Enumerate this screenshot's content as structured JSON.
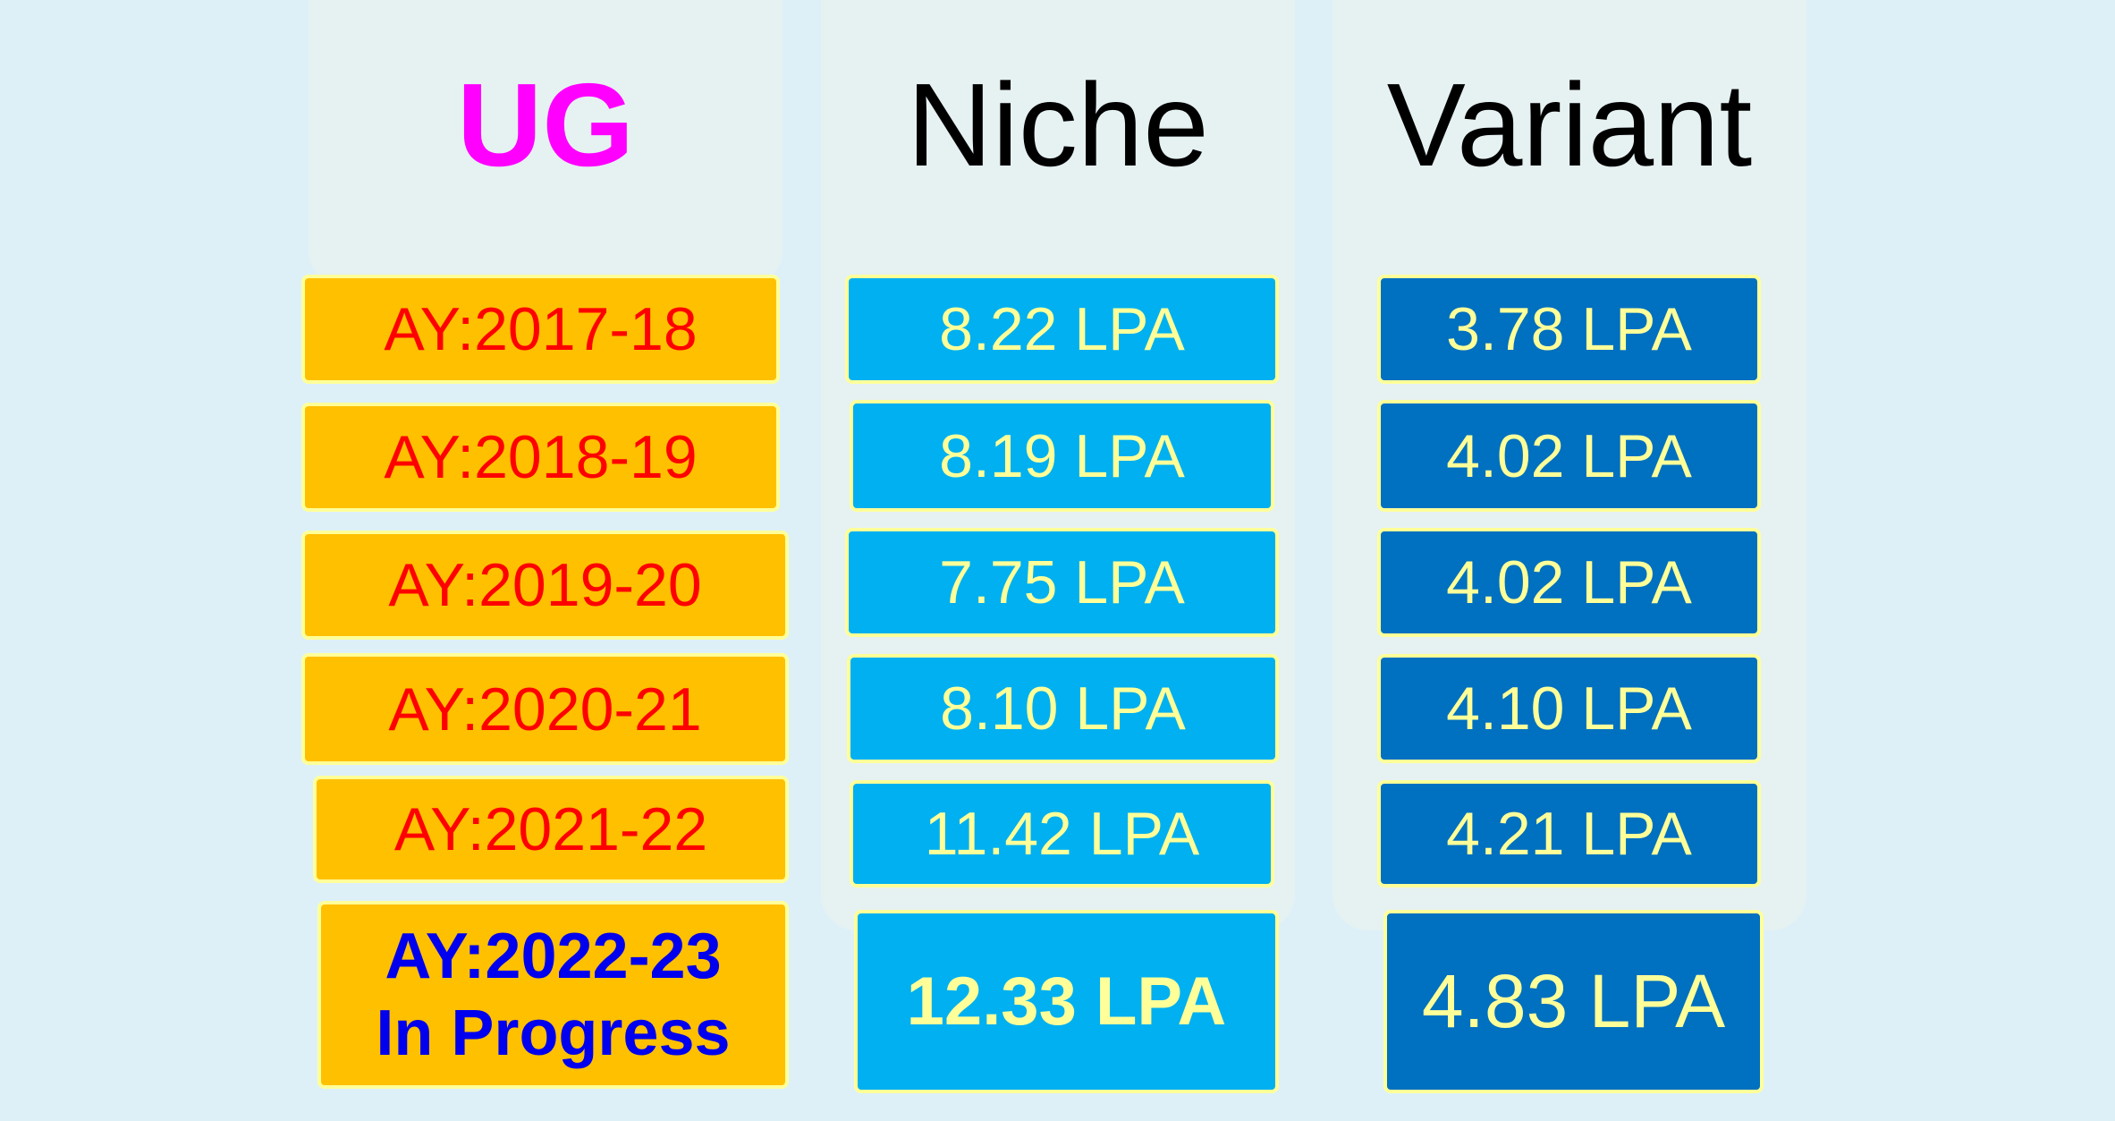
{
  "headings": {
    "ug": "UG",
    "niche": "Niche",
    "variant": "Variant"
  },
  "rows": [
    {
      "year": "AY:2017-18",
      "niche": "8.22 LPA",
      "variant": "3.78 LPA"
    },
    {
      "year": "AY:2018-19",
      "niche": "8.19 LPA",
      "variant": "4.02 LPA"
    },
    {
      "year": "AY:2019-20",
      "niche": "7.75 LPA",
      "variant": "4.02 LPA"
    },
    {
      "year": "AY:2020-21",
      "niche": "8.10 LPA",
      "variant": "4.10 LPA"
    },
    {
      "year": "AY:2021-22",
      "niche": "11.42 LPA",
      "variant": "4.21 LPA"
    }
  ],
  "current": {
    "year_line1": "AY:2022-23",
    "year_line2": "In Progress",
    "niche": "12.33 LPA",
    "variant": "4.83 LPA"
  },
  "colors": {
    "ug_heading": "#ff00ff",
    "year_box": "#ffc000",
    "year_text": "#ff0000",
    "current_year_text": "#0000ee",
    "niche_box": "#00b0f0",
    "variant_box": "#0070c0",
    "value_text": "#ffff99"
  }
}
